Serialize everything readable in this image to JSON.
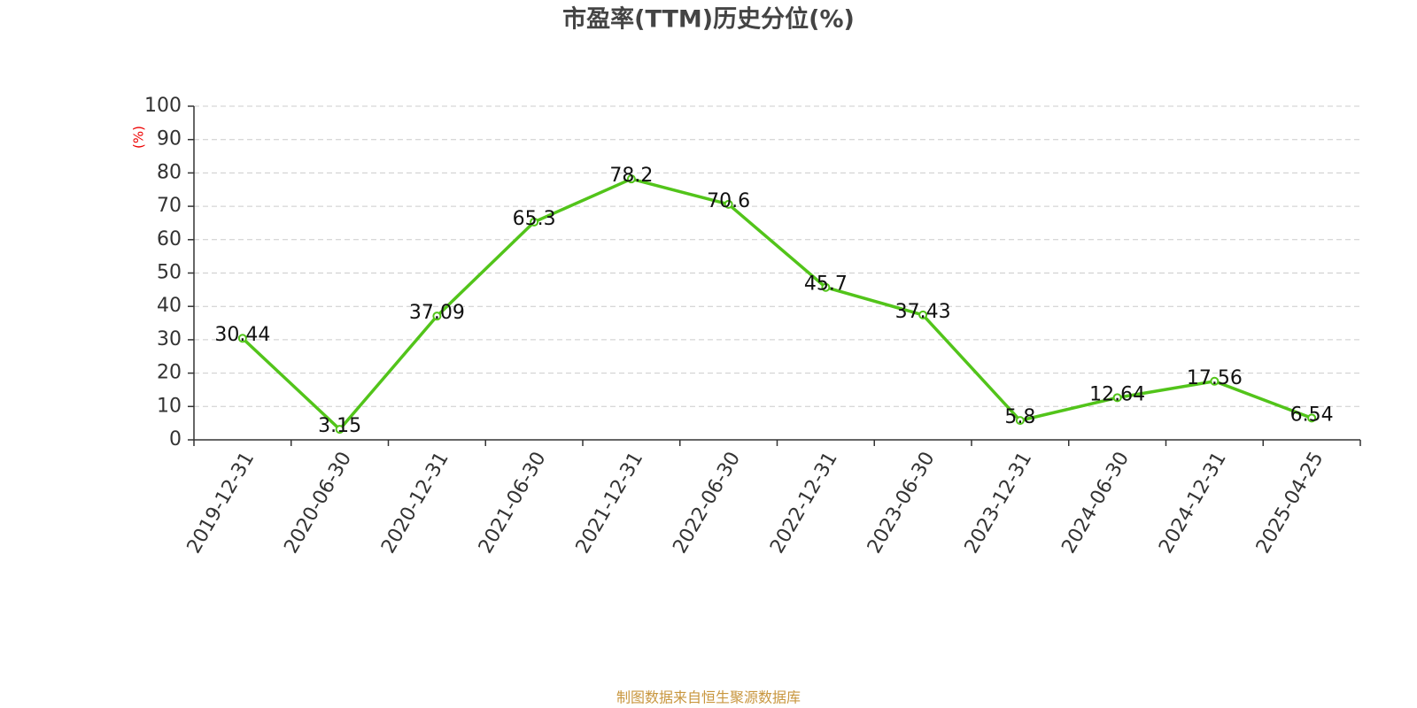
{
  "chart_data": {
    "type": "line",
    "title": "市盈率(TTM)历史分位(%)",
    "y_label": "(%)",
    "categories": [
      "2019-12-31",
      "2020-06-30",
      "2020-12-31",
      "2021-06-30",
      "2021-12-31",
      "2022-06-30",
      "2022-12-31",
      "2023-06-30",
      "2023-12-31",
      "2024-06-30",
      "2024-12-31",
      "2025-04-25"
    ],
    "series": [
      {
        "name": "市盈率(TTM)历史分位",
        "color": "#52c41a",
        "values": [
          30.44,
          3.15,
          37.09,
          65.3,
          78.2,
          70.6,
          45.7,
          37.43,
          5.8,
          12.64,
          17.56,
          6.54
        ]
      }
    ],
    "ylim": [
      0,
      100
    ],
    "yticks": [
      0,
      10,
      20,
      30,
      40,
      50,
      60,
      70,
      80,
      90,
      100
    ],
    "grid": true,
    "footer": "制图数据来自恒生聚源数据库"
  }
}
